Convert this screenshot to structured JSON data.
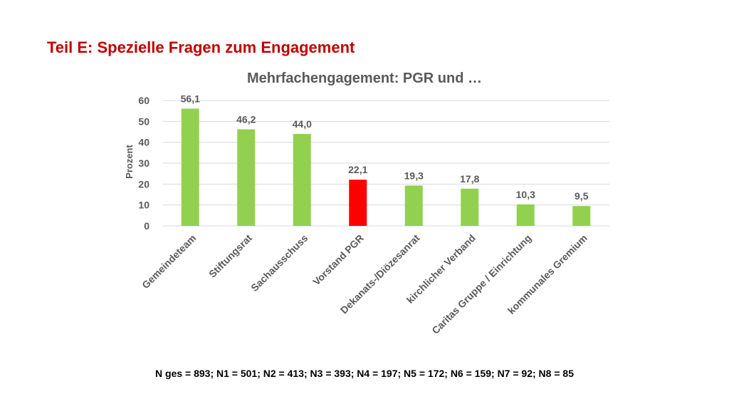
{
  "slide": {
    "title": "Teil E: Spezielle Fragen zum Engagement",
    "footnote": "N ges = 893; N1 = 501; N2 = 413; N3 = 393; N4 = 197; N5 = 172; N6 = 159; N7 = 92; N8 = 85"
  },
  "colors": {
    "title": "#c00000",
    "bar_default": "#92d050",
    "bar_highlight": "#ff0000",
    "axis_text": "#595959",
    "grid": "#d9d9d9"
  },
  "chart_data": {
    "type": "bar",
    "title": "Mehrfachengagement: PGR und …",
    "xlabel": "",
    "ylabel": "Prozent",
    "ylim": [
      0,
      60
    ],
    "yticks": [
      0,
      10,
      20,
      30,
      40,
      50,
      60
    ],
    "grid": true,
    "legend": "none",
    "categories": [
      "Gemeindeteam",
      "Stiftungsrat",
      "Sachausschuss",
      "Vorstand PGR",
      "Dekanats-/Diözesanrat",
      "kirchlicher Verband",
      "Caritas Gruppe / Einrichtung",
      "kommunales Gremium"
    ],
    "values": [
      56.1,
      46.2,
      44.0,
      22.1,
      19.3,
      17.8,
      10.3,
      9.5
    ],
    "value_labels": [
      "56,1",
      "46,2",
      "44,0",
      "22,1",
      "19,3",
      "17,8",
      "10,3",
      "9,5"
    ],
    "highlight_index": 3
  }
}
